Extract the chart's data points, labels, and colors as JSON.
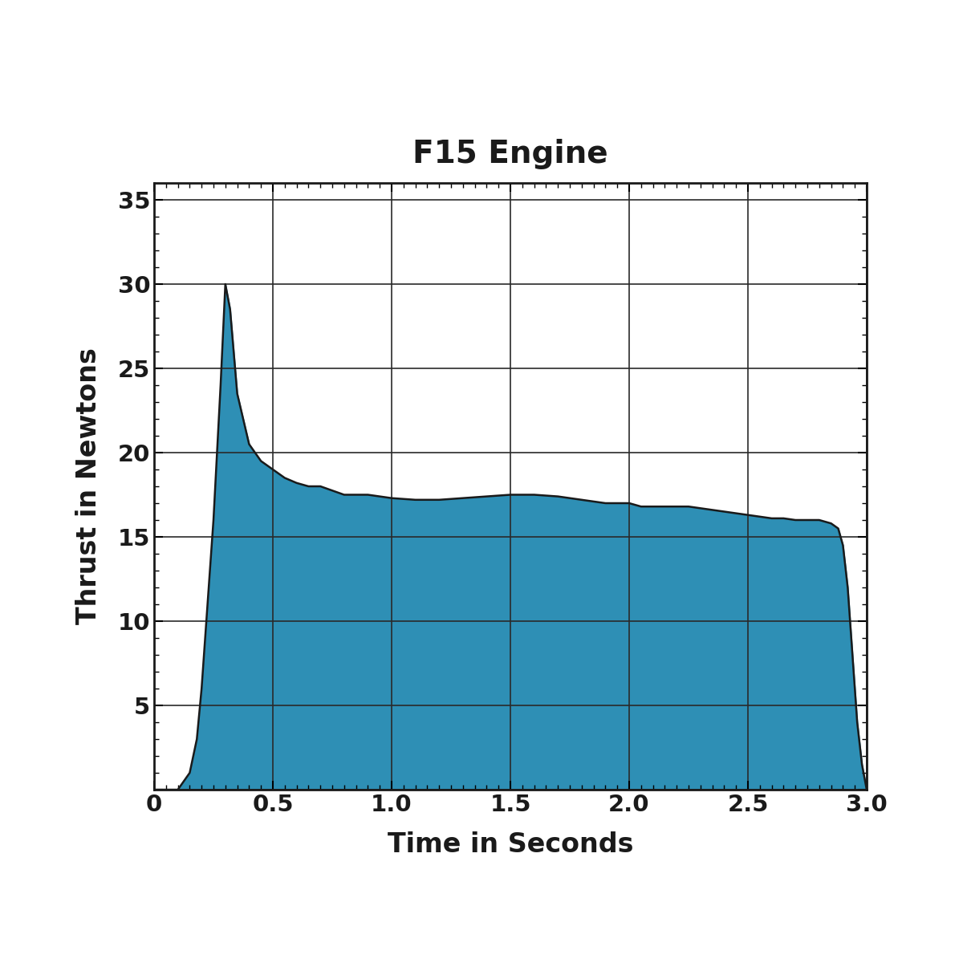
{
  "title": "F15 Engine",
  "xlabel": "Time in Seconds",
  "ylabel": "Thrust in Newtons",
  "fill_color": "#2E8FB5",
  "line_color": "#1a1a1a",
  "background_color": "#ffffff",
  "xlim": [
    0,
    3.0
  ],
  "ylim": [
    0,
    36
  ],
  "xticks": [
    0,
    0.5,
    1.0,
    1.5,
    2.0,
    2.5,
    3.0
  ],
  "xtick_labels": [
    "0",
    "0.5",
    "1.0",
    "1.5",
    "2.0",
    "2.5",
    "3.0"
  ],
  "yticks": [
    0,
    5,
    10,
    15,
    20,
    25,
    30,
    35
  ],
  "ytick_labels": [
    "",
    "5",
    "10",
    "15",
    "20",
    "25",
    "30",
    "35"
  ],
  "title_fontsize": 28,
  "label_fontsize": 24,
  "tick_fontsize": 21,
  "time": [
    0.0,
    0.1,
    0.15,
    0.18,
    0.2,
    0.22,
    0.25,
    0.28,
    0.3,
    0.32,
    0.35,
    0.4,
    0.45,
    0.5,
    0.55,
    0.6,
    0.65,
    0.7,
    0.8,
    0.9,
    1.0,
    1.1,
    1.2,
    1.3,
    1.4,
    1.5,
    1.6,
    1.7,
    1.8,
    1.9,
    2.0,
    2.05,
    2.1,
    2.15,
    2.2,
    2.25,
    2.3,
    2.35,
    2.4,
    2.45,
    2.5,
    2.55,
    2.6,
    2.65,
    2.7,
    2.75,
    2.8,
    2.85,
    2.88,
    2.9,
    2.92,
    2.94,
    2.96,
    2.98,
    3.0
  ],
  "thrust": [
    0.0,
    0.0,
    1.0,
    3.0,
    6.0,
    10.0,
    16.0,
    24.0,
    30.0,
    28.5,
    23.5,
    20.5,
    19.5,
    19.0,
    18.5,
    18.2,
    18.0,
    18.0,
    17.5,
    17.5,
    17.3,
    17.2,
    17.2,
    17.3,
    17.4,
    17.5,
    17.5,
    17.4,
    17.2,
    17.0,
    17.0,
    16.8,
    16.8,
    16.8,
    16.8,
    16.8,
    16.7,
    16.6,
    16.5,
    16.4,
    16.3,
    16.2,
    16.1,
    16.1,
    16.0,
    16.0,
    16.0,
    15.8,
    15.5,
    14.5,
    12.0,
    8.0,
    4.0,
    1.5,
    0.0
  ]
}
